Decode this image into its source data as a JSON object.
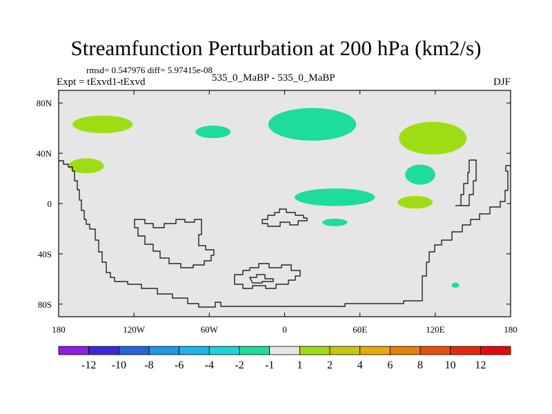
{
  "chart_data": {
    "type": "heatmap",
    "title": "Streamfunction Perturbation at 200 hPa (km2/s)",
    "stats_text": "rmsd= 0.547976 diff= 5.97415e-08",
    "left_label": "Expt = tExvd1-tExvd",
    "center_label": "535_0_MaBP - 535_0_MaBP",
    "right_label": "DJF",
    "x_axis": {
      "range": [
        -180,
        180
      ],
      "ticks": [
        {
          "value": -180,
          "label": "180"
        },
        {
          "value": -120,
          "label": "120W"
        },
        {
          "value": -60,
          "label": "60W"
        },
        {
          "value": 0,
          "label": "0"
        },
        {
          "value": 60,
          "label": "60E"
        },
        {
          "value": 120,
          "label": "120E"
        },
        {
          "value": 180,
          "label": "180"
        }
      ]
    },
    "y_axis": {
      "range": [
        -90,
        90
      ],
      "ticks": [
        {
          "value": 80,
          "label": "80N"
        },
        {
          "value": 40,
          "label": "40N"
        },
        {
          "value": 0,
          "label": "0"
        },
        {
          "value": -40,
          "label": "40S"
        },
        {
          "value": -80,
          "label": "80S"
        }
      ]
    },
    "colorbar": {
      "labels": [
        "-12",
        "-10",
        "-8",
        "-6",
        "-4",
        "-2",
        "-1",
        "1",
        "2",
        "4",
        "6",
        "8",
        "10",
        "12"
      ],
      "colors": [
        "#8c1ee6",
        "#3c28dc",
        "#2664dc",
        "#1e96e6",
        "#1eb4e6",
        "#1ed2dc",
        "#1edc9b",
        "#e6e6e6",
        "#a0dc14",
        "#c8c80a",
        "#e6aa0a",
        "#e6820a",
        "#e6500a",
        "#e6280a",
        "#e60a0a"
      ]
    },
    "background_color": "#e6e6e6",
    "regions": [
      {
        "label": "+1..+2",
        "lon": -145,
        "lat": 63,
        "rlon": 24,
        "rlat": 7,
        "color": "#a0dc14"
      },
      {
        "label": "+1..+2",
        "lon": -158,
        "lat": 30,
        "rlon": 14,
        "rlat": 6,
        "color": "#a0dc14"
      },
      {
        "label": "-1..-2",
        "lon": -57,
        "lat": 57,
        "rlon": 14,
        "rlat": 5,
        "color": "#1edc9b"
      },
      {
        "label": "-1..-2",
        "lon": 22,
        "lat": 63,
        "rlon": 35,
        "rlat": 13,
        "color": "#1edc9b"
      },
      {
        "label": "+1..+2",
        "lon": 118,
        "lat": 52,
        "rlon": 27,
        "rlat": 13,
        "color": "#a0dc14"
      },
      {
        "label": "-1..-2",
        "lon": 108,
        "lat": 23,
        "rlon": 12,
        "rlat": 8,
        "color": "#1edc9b"
      },
      {
        "label": "-1..-2",
        "lon": 40,
        "lat": 5,
        "rlon": 32,
        "rlat": 7,
        "color": "#1edc9b"
      },
      {
        "label": "+1..+2",
        "lon": 104,
        "lat": 1,
        "rlon": 14,
        "rlat": 5,
        "color": "#a0dc14"
      },
      {
        "label": "-1..-2",
        "lon": 40,
        "lat": -15,
        "rlon": 10,
        "rlat": 3,
        "color": "#1edc9b"
      },
      {
        "label": "-1..-2",
        "lon": 136,
        "lat": -65,
        "rlon": 3,
        "rlat": 2,
        "color": "#1edc9b"
      }
    ]
  }
}
